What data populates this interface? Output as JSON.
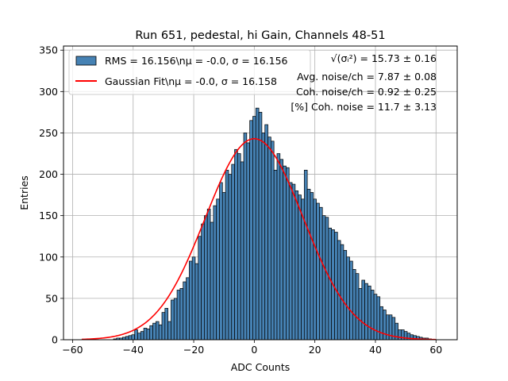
{
  "chart_data": {
    "type": "bar",
    "title": "Run 651, pedestal, hi Gain, Channels 48-51",
    "xlabel": "ADC Counts",
    "ylabel": "Entries",
    "xlim": [
      -63,
      67
    ],
    "ylim": [
      0,
      355
    ],
    "xticks": [
      -60,
      -40,
      -20,
      0,
      20,
      40,
      60
    ],
    "yticks": [
      0,
      50,
      100,
      150,
      200,
      250,
      300,
      350
    ],
    "grid": true,
    "bin_width": 1,
    "bin_start": -57.5,
    "histogram_counts": [
      0,
      0,
      0,
      0,
      0,
      0,
      0,
      0,
      0,
      0,
      0,
      1,
      2,
      2,
      3,
      4,
      5,
      6,
      12,
      8,
      10,
      14,
      13,
      17,
      20,
      22,
      18,
      33,
      38,
      22,
      48,
      50,
      60,
      62,
      70,
      75,
      95,
      100,
      92,
      125,
      140,
      150,
      158,
      142,
      162,
      170,
      190,
      178,
      205,
      200,
      212,
      230,
      225,
      215,
      250,
      238,
      265,
      270,
      280,
      275,
      250,
      260,
      245,
      240,
      205,
      225,
      218,
      210,
      208,
      190,
      188,
      180,
      175,
      170,
      205,
      182,
      178,
      170,
      165,
      160,
      150,
      148,
      135,
      133,
      130,
      120,
      115,
      108,
      100,
      95,
      85,
      80,
      62,
      72,
      68,
      65,
      60,
      55,
      52,
      40,
      36,
      30,
      30,
      27,
      20,
      12,
      12,
      10,
      8,
      6,
      5,
      4,
      3,
      2,
      2,
      1,
      0,
      0
    ],
    "series": [
      {
        "name": "RMS = 16.156\\n$\\mu$ = -0.0, $\\sigma$ = 16.156",
        "kind": "histogram",
        "color": "#4682b4"
      },
      {
        "name": "Gaussian Fit\\n$\\mu$ = -0.0, $\\sigma$ = 16.158",
        "kind": "line",
        "color": "#ff0000",
        "mu": 0.0,
        "sigma": 16.158,
        "amplitude": 243,
        "x_range": [
          -57,
          60
        ]
      }
    ],
    "legend": {
      "position": "top-left",
      "entries": [
        {
          "text": "RMS = 16.156\\nμ = -0.0, σ = 16.156",
          "marker": "patch",
          "color": "#4682b4"
        },
        {
          "text": "Gaussian Fit\\nμ = -0.0, σ = 16.158",
          "marker": "line",
          "color": "#ff0000"
        }
      ]
    },
    "annotations": [
      "√(σᵢ²) = 15.73 ± 0.16",
      "Avg. noise/ch = 7.87 ± 0.08",
      "Coh. noise/ch = 0.92 ± 0.25",
      "[%] Coh. noise = 11.7 ± 3.13"
    ]
  }
}
